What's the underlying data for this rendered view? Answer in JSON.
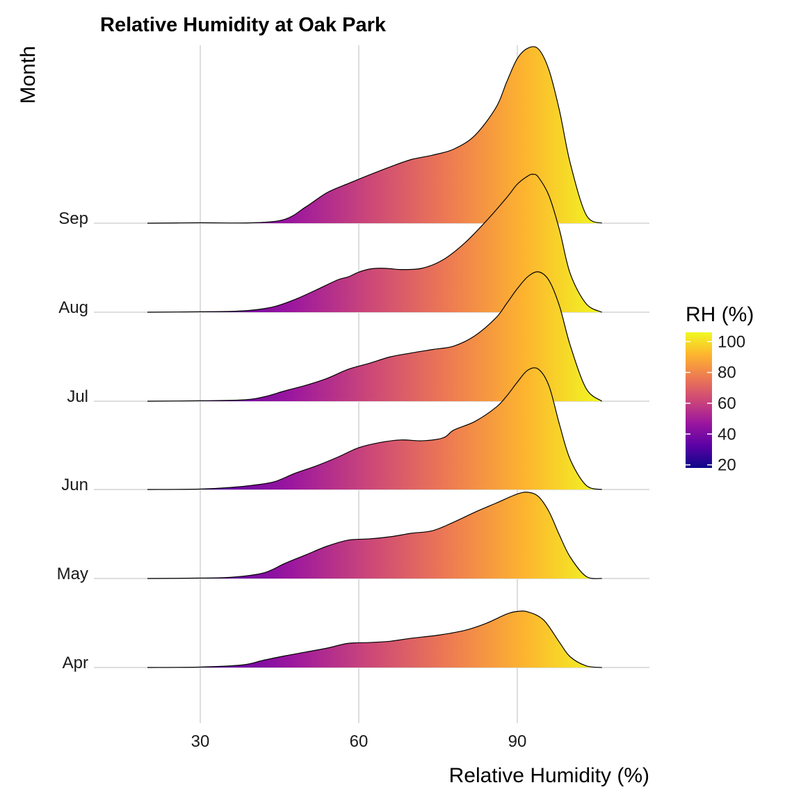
{
  "chart_data": {
    "type": "ridgeline",
    "title": "Relative Humidity at Oak Park",
    "xlabel": "Relative Humidity (%)",
    "ylabel": "Month",
    "xlim": [
      10,
      116
    ],
    "x_ticks": [
      30,
      60,
      90
    ],
    "density_range": [
      20,
      106
    ],
    "grid": true,
    "legend": {
      "title": "RH (%)",
      "position": "right",
      "ticks": [
        20,
        40,
        60,
        80,
        100
      ],
      "range": [
        18,
        106
      ],
      "colors": [
        "#0d0887",
        "#5c01a6",
        "#9c179e",
        "#cc4778",
        "#ed7953",
        "#fdb42f",
        "#f0f921"
      ]
    },
    "series": [
      {
        "name": "Apr",
        "x": [
          20,
          30,
          38,
          42,
          46,
          50,
          54,
          58,
          62,
          66,
          70,
          75,
          80,
          84,
          88,
          90,
          92,
          95,
          98,
          100,
          103,
          106
        ],
        "density": [
          0,
          0.01,
          0.06,
          0.17,
          0.27,
          0.36,
          0.45,
          0.56,
          0.58,
          0.61,
          0.68,
          0.75,
          0.86,
          1.02,
          1.24,
          1.3,
          1.29,
          1.1,
          0.58,
          0.25,
          0.04,
          0
        ]
      },
      {
        "name": "May",
        "x": [
          20,
          30,
          36,
          42,
          46,
          50,
          54,
          58,
          62,
          66,
          70,
          74,
          78,
          82,
          86,
          90,
          92,
          94,
          96,
          98,
          100,
          103,
          106
        ],
        "density": [
          0,
          0.01,
          0.03,
          0.13,
          0.35,
          0.55,
          0.75,
          0.89,
          0.92,
          0.97,
          1.05,
          1.11,
          1.31,
          1.54,
          1.75,
          1.96,
          2.0,
          1.9,
          1.55,
          1.0,
          0.5,
          0.05,
          0
        ]
      },
      {
        "name": "Jun",
        "x": [
          20,
          30,
          36,
          40,
          44,
          48,
          52,
          56,
          60,
          64,
          68,
          72,
          76,
          78,
          82,
          86,
          88,
          90,
          92,
          94,
          96,
          98,
          100,
          103,
          106
        ],
        "density": [
          0,
          0.01,
          0.05,
          0.1,
          0.18,
          0.38,
          0.55,
          0.75,
          0.97,
          1.09,
          1.15,
          1.13,
          1.2,
          1.38,
          1.58,
          1.91,
          2.17,
          2.49,
          2.77,
          2.79,
          2.4,
          1.5,
          0.7,
          0.1,
          0
        ]
      },
      {
        "name": "Jul",
        "x": [
          20,
          30,
          38,
          42,
          46,
          50,
          54,
          58,
          62,
          66,
          70,
          74,
          78,
          82,
          86,
          88,
          90,
          92,
          94,
          96,
          98,
          100,
          103,
          106
        ],
        "density": [
          0,
          0.01,
          0.03,
          0.1,
          0.24,
          0.37,
          0.53,
          0.74,
          0.88,
          1.03,
          1.12,
          1.2,
          1.28,
          1.52,
          1.94,
          2.27,
          2.61,
          2.89,
          3.0,
          2.8,
          2.2,
          1.3,
          0.3,
          0
        ]
      },
      {
        "name": "Aug",
        "x": [
          20,
          30,
          36,
          40,
          44,
          48,
          52,
          56,
          58,
          60,
          62,
          64,
          66,
          68,
          72,
          76,
          80,
          84,
          88,
          90,
          92,
          93,
          94,
          96,
          98,
          100,
          103,
          106
        ],
        "density": [
          0,
          0.01,
          0.02,
          0.05,
          0.13,
          0.3,
          0.52,
          0.75,
          0.82,
          0.93,
          1.0,
          1.02,
          1.01,
          0.99,
          1.02,
          1.22,
          1.6,
          2.1,
          2.66,
          2.97,
          3.16,
          3.2,
          3.13,
          2.7,
          1.9,
          0.9,
          0.2,
          0
        ]
      },
      {
        "name": "Sep",
        "x": [
          20,
          30,
          40,
          46,
          50,
          54,
          58,
          62,
          66,
          70,
          74,
          78,
          82,
          86,
          88,
          90,
          92,
          94,
          96,
          98,
          100,
          103,
          106
        ],
        "density": [
          0,
          0.01,
          0.01,
          0.09,
          0.38,
          0.71,
          0.92,
          1.12,
          1.31,
          1.48,
          1.58,
          1.72,
          2.04,
          2.69,
          3.28,
          3.82,
          4.06,
          4.04,
          3.55,
          2.6,
          1.4,
          0.2,
          0
        ]
      }
    ]
  }
}
